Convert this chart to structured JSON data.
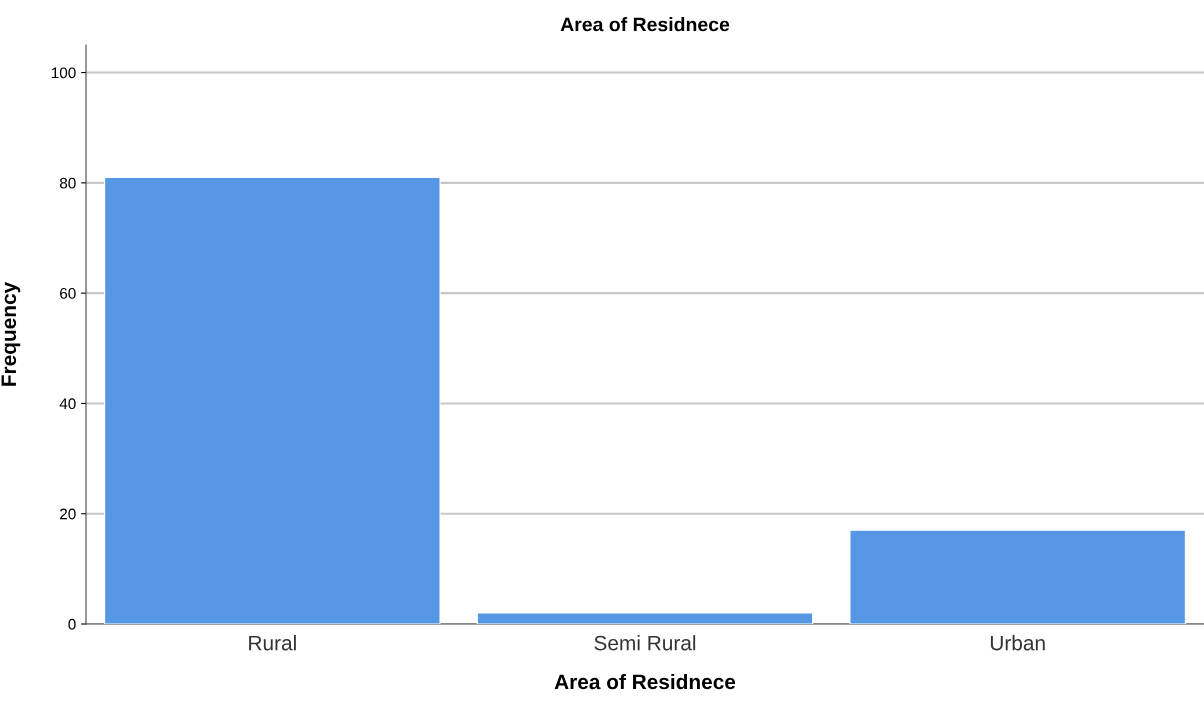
{
  "chart_data": {
    "type": "bar",
    "title": "Area of Residnece",
    "xlabel": "Area of Residnece",
    "ylabel": "Frequency",
    "categories": [
      "Rural",
      "Semi Rural",
      "Urban"
    ],
    "values": [
      81,
      2,
      17
    ],
    "color": "#5596e5",
    "ylim": [
      0,
      105
    ],
    "yticks": [
      0,
      20,
      40,
      60,
      80,
      100
    ],
    "grid": "y"
  }
}
